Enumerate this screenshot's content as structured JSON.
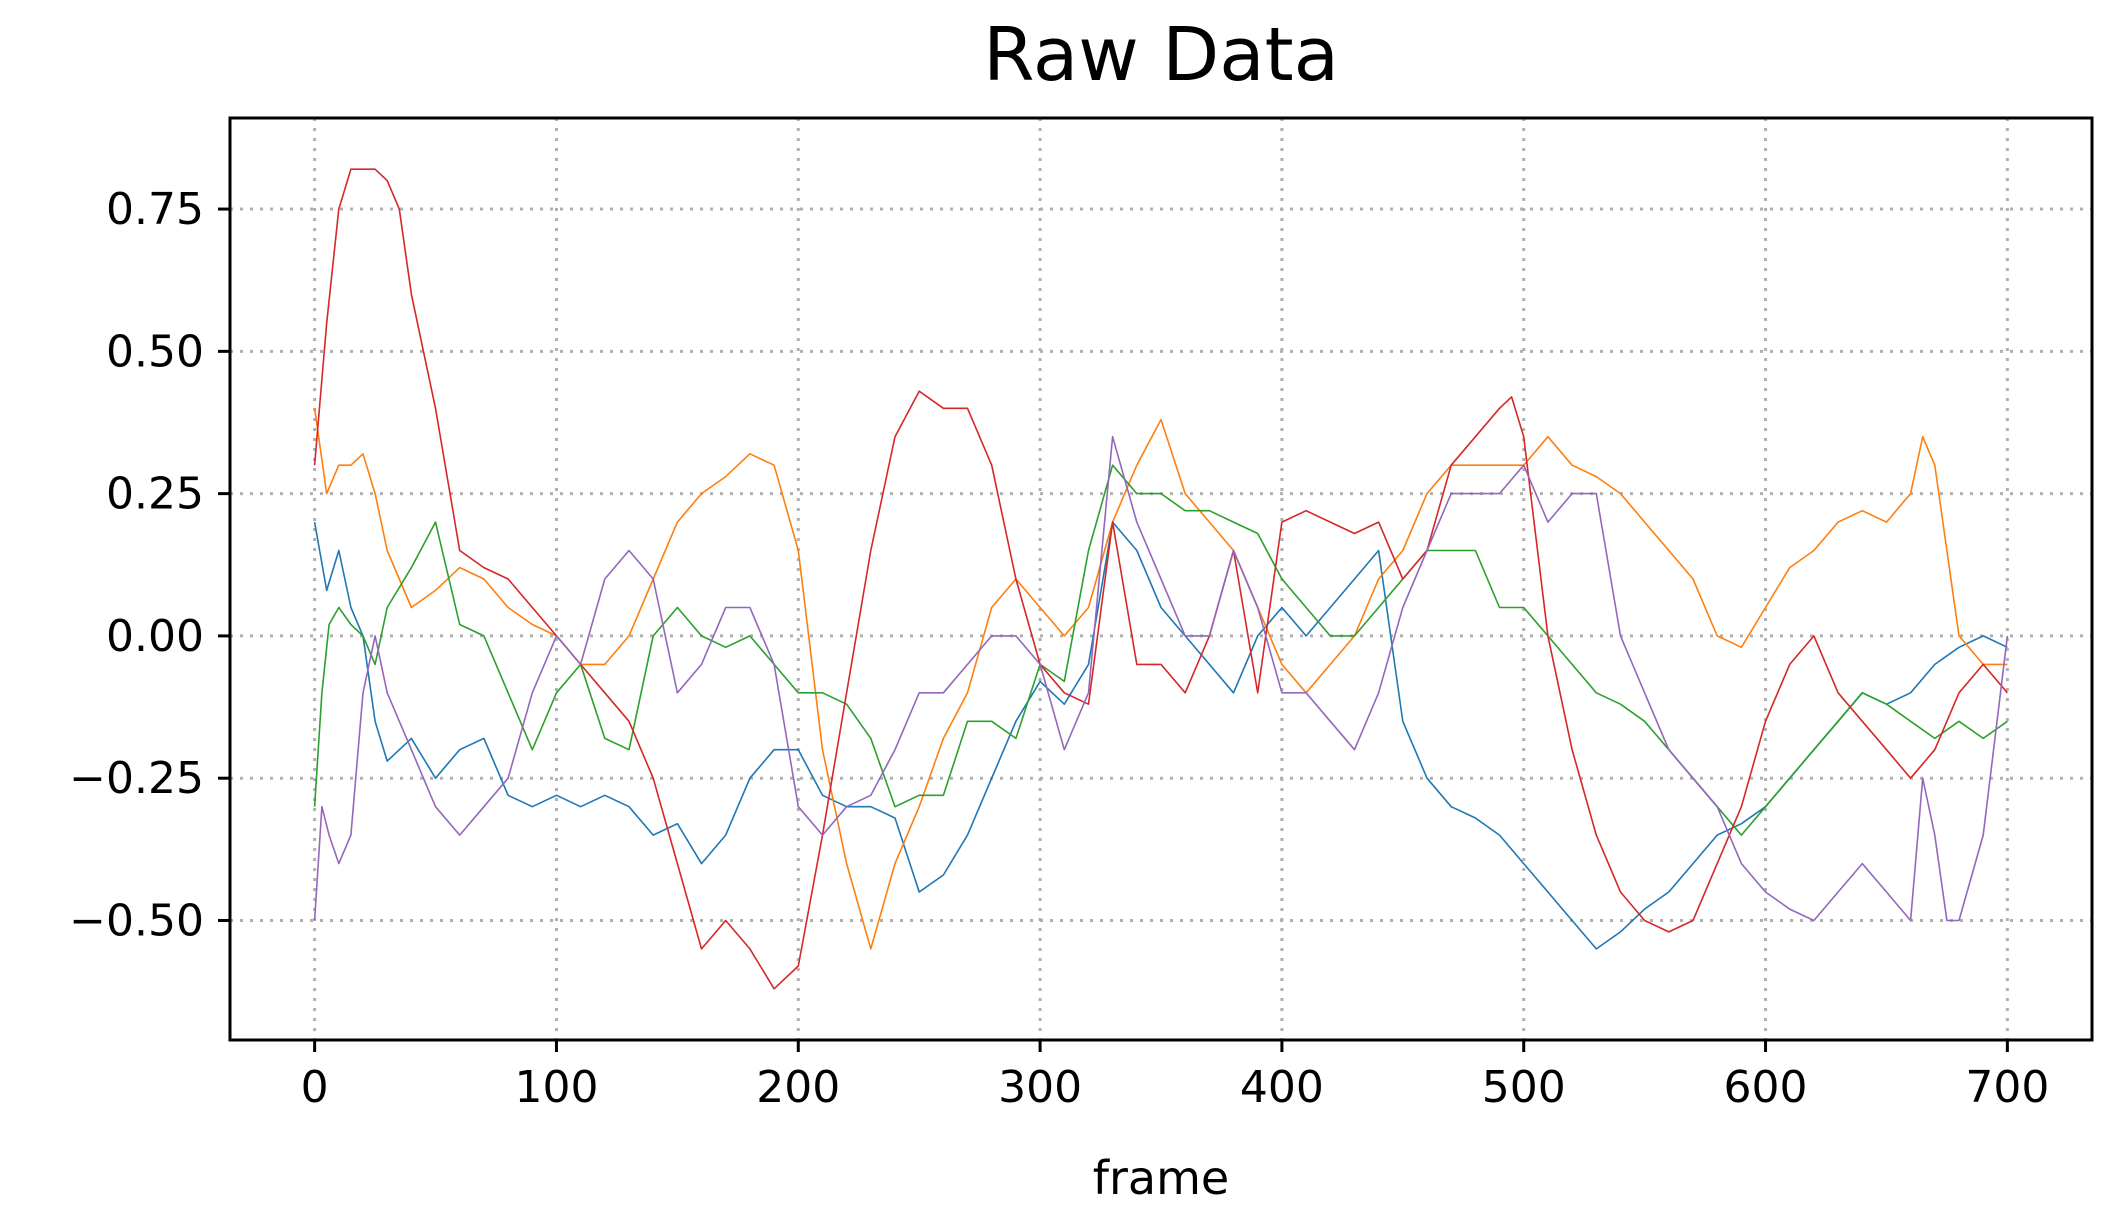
{
  "chart_data": {
    "type": "line",
    "title": "Raw Data",
    "xlabel": "frame",
    "ylabel": "",
    "xlim": [
      -35,
      735
    ],
    "ylim": [
      -0.71,
      0.91
    ],
    "xticks": [
      0,
      100,
      200,
      300,
      400,
      500,
      600,
      700
    ],
    "xtick_labels": [
      "0",
      "100",
      "200",
      "300",
      "400",
      "500",
      "600",
      "700"
    ],
    "yticks": [
      0.75,
      0.5,
      0.25,
      0.0,
      -0.25,
      -0.5
    ],
    "ytick_labels": [
      "0.75",
      "0.50",
      "0.25",
      "0.00",
      "−0.25",
      "−0.50"
    ],
    "grid": true,
    "legend": "none",
    "series": [
      {
        "color": "#1f77b4",
        "x": [
          0,
          5,
          10,
          15,
          20,
          25,
          30,
          40,
          50,
          60,
          70,
          80,
          90,
          100,
          110,
          120,
          130,
          140,
          150,
          160,
          170,
          180,
          190,
          200,
          210,
          220,
          230,
          240,
          250,
          260,
          270,
          280,
          290,
          300,
          310,
          320,
          330,
          340,
          350,
          360,
          370,
          380,
          390,
          400,
          410,
          420,
          430,
          440,
          450,
          460,
          470,
          480,
          490,
          500,
          510,
          520,
          530,
          540,
          550,
          560,
          570,
          580,
          590,
          600,
          610,
          620,
          630,
          640,
          650,
          660,
          670,
          680,
          690,
          700
        ],
        "y": [
          0.2,
          0.08,
          0.15,
          0.05,
          0.0,
          -0.15,
          -0.22,
          -0.18,
          -0.25,
          -0.2,
          -0.18,
          -0.28,
          -0.3,
          -0.28,
          -0.3,
          -0.28,
          -0.3,
          -0.35,
          -0.33,
          -0.4,
          -0.35,
          -0.25,
          -0.2,
          -0.2,
          -0.28,
          -0.3,
          -0.3,
          -0.32,
          -0.45,
          -0.42,
          -0.35,
          -0.25,
          -0.15,
          -0.08,
          -0.12,
          -0.05,
          0.2,
          0.15,
          0.05,
          0.0,
          -0.05,
          -0.1,
          0.0,
          0.05,
          0.0,
          0.05,
          0.1,
          0.15,
          -0.15,
          -0.25,
          -0.3,
          -0.32,
          -0.35,
          -0.4,
          -0.45,
          -0.5,
          -0.55,
          -0.52,
          -0.48,
          -0.45,
          -0.4,
          -0.35,
          -0.33,
          -0.3,
          -0.25,
          -0.2,
          -0.15,
          -0.1,
          -0.12,
          -0.1,
          -0.05,
          -0.02,
          0.0,
          -0.02
        ]
      },
      {
        "color": "#ff7f0e",
        "x": [
          0,
          5,
          10,
          15,
          20,
          25,
          30,
          40,
          50,
          60,
          70,
          80,
          90,
          100,
          110,
          120,
          130,
          140,
          150,
          160,
          170,
          180,
          190,
          200,
          210,
          220,
          230,
          240,
          250,
          260,
          270,
          280,
          290,
          300,
          310,
          320,
          330,
          340,
          350,
          360,
          370,
          380,
          390,
          400,
          410,
          420,
          430,
          440,
          450,
          460,
          470,
          480,
          490,
          500,
          510,
          520,
          530,
          540,
          550,
          560,
          570,
          580,
          590,
          600,
          610,
          620,
          630,
          640,
          650,
          660,
          665,
          670,
          680,
          690,
          700
        ],
        "y": [
          0.4,
          0.25,
          0.3,
          0.3,
          0.32,
          0.25,
          0.15,
          0.05,
          0.08,
          0.12,
          0.1,
          0.05,
          0.02,
          0.0,
          -0.05,
          -0.05,
          0.0,
          0.1,
          0.2,
          0.25,
          0.28,
          0.32,
          0.3,
          0.15,
          -0.2,
          -0.4,
          -0.55,
          -0.4,
          -0.3,
          -0.18,
          -0.1,
          0.05,
          0.1,
          0.05,
          0.0,
          0.05,
          0.2,
          0.3,
          0.38,
          0.25,
          0.2,
          0.15,
          0.05,
          -0.05,
          -0.1,
          -0.05,
          0.0,
          0.1,
          0.15,
          0.25,
          0.3,
          0.3,
          0.3,
          0.3,
          0.35,
          0.3,
          0.28,
          0.25,
          0.2,
          0.15,
          0.1,
          0.0,
          -0.02,
          0.05,
          0.12,
          0.15,
          0.2,
          0.22,
          0.2,
          0.25,
          0.35,
          0.3,
          0.0,
          -0.05,
          -0.05
        ]
      },
      {
        "color": "#2ca02c",
        "x": [
          0,
          3,
          6,
          10,
          15,
          20,
          25,
          30,
          40,
          50,
          60,
          70,
          80,
          90,
          100,
          110,
          120,
          130,
          140,
          150,
          160,
          170,
          180,
          190,
          200,
          210,
          220,
          230,
          240,
          250,
          260,
          270,
          280,
          290,
          300,
          310,
          320,
          330,
          340,
          350,
          360,
          370,
          380,
          390,
          400,
          410,
          420,
          430,
          440,
          450,
          460,
          470,
          480,
          490,
          500,
          510,
          520,
          530,
          540,
          550,
          560,
          570,
          580,
          590,
          600,
          610,
          620,
          630,
          640,
          650,
          660,
          670,
          680,
          690,
          700
        ],
        "y": [
          -0.3,
          -0.1,
          0.02,
          0.05,
          0.02,
          0.0,
          -0.05,
          0.05,
          0.12,
          0.2,
          0.02,
          0.0,
          -0.1,
          -0.2,
          -0.1,
          -0.05,
          -0.18,
          -0.2,
          0.0,
          0.05,
          0.0,
          -0.02,
          0.0,
          -0.05,
          -0.1,
          -0.1,
          -0.12,
          -0.18,
          -0.3,
          -0.28,
          -0.28,
          -0.15,
          -0.15,
          -0.18,
          -0.05,
          -0.08,
          0.15,
          0.3,
          0.25,
          0.25,
          0.22,
          0.22,
          0.2,
          0.18,
          0.1,
          0.05,
          0.0,
          0.0,
          0.05,
          0.1,
          0.15,
          0.15,
          0.15,
          0.05,
          0.05,
          0.0,
          -0.05,
          -0.1,
          -0.12,
          -0.15,
          -0.2,
          -0.25,
          -0.3,
          -0.35,
          -0.3,
          -0.25,
          -0.2,
          -0.15,
          -0.1,
          -0.12,
          -0.15,
          -0.18,
          -0.15,
          -0.18,
          -0.15
        ]
      },
      {
        "color": "#d62728",
        "x": [
          0,
          5,
          10,
          15,
          20,
          25,
          30,
          35,
          40,
          50,
          60,
          70,
          80,
          90,
          100,
          110,
          120,
          130,
          140,
          150,
          160,
          170,
          180,
          190,
          200,
          210,
          220,
          230,
          240,
          250,
          260,
          270,
          280,
          290,
          300,
          310,
          320,
          330,
          340,
          350,
          360,
          370,
          380,
          390,
          400,
          410,
          420,
          430,
          440,
          450,
          460,
          470,
          480,
          490,
          495,
          500,
          510,
          520,
          530,
          540,
          550,
          560,
          570,
          580,
          590,
          600,
          610,
          620,
          630,
          640,
          650,
          660,
          670,
          680,
          690,
          700
        ],
        "y": [
          0.3,
          0.55,
          0.75,
          0.82,
          0.82,
          0.82,
          0.8,
          0.75,
          0.6,
          0.4,
          0.15,
          0.12,
          0.1,
          0.05,
          0.0,
          -0.05,
          -0.1,
          -0.15,
          -0.25,
          -0.4,
          -0.55,
          -0.5,
          -0.55,
          -0.62,
          -0.58,
          -0.35,
          -0.1,
          0.15,
          0.35,
          0.43,
          0.4,
          0.4,
          0.3,
          0.1,
          -0.05,
          -0.1,
          -0.12,
          0.2,
          -0.05,
          -0.05,
          -0.1,
          0.0,
          0.15,
          -0.1,
          0.2,
          0.22,
          0.2,
          0.18,
          0.2,
          0.1,
          0.15,
          0.3,
          0.35,
          0.4,
          0.42,
          0.35,
          0.0,
          -0.2,
          -0.35,
          -0.45,
          -0.5,
          -0.52,
          -0.5,
          -0.4,
          -0.3,
          -0.15,
          -0.05,
          0.0,
          -0.1,
          -0.15,
          -0.2,
          -0.25,
          -0.2,
          -0.1,
          -0.05,
          -0.1
        ]
      },
      {
        "color": "#9467bd",
        "x": [
          0,
          3,
          6,
          10,
          15,
          20,
          25,
          30,
          40,
          50,
          60,
          70,
          80,
          90,
          100,
          110,
          120,
          130,
          140,
          150,
          160,
          170,
          180,
          190,
          200,
          210,
          220,
          230,
          240,
          250,
          260,
          270,
          280,
          290,
          300,
          310,
          320,
          330,
          340,
          350,
          360,
          370,
          380,
          390,
          400,
          410,
          420,
          430,
          440,
          450,
          460,
          470,
          480,
          490,
          500,
          510,
          520,
          530,
          540,
          550,
          560,
          570,
          580,
          590,
          600,
          610,
          620,
          630,
          640,
          650,
          660,
          665,
          670,
          675,
          680,
          690,
          700
        ],
        "y": [
          -0.5,
          -0.3,
          -0.35,
          -0.4,
          -0.35,
          -0.1,
          0.0,
          -0.1,
          -0.2,
          -0.3,
          -0.35,
          -0.3,
          -0.25,
          -0.1,
          0.0,
          -0.05,
          0.1,
          0.15,
          0.1,
          -0.1,
          -0.05,
          0.05,
          0.05,
          -0.05,
          -0.3,
          -0.35,
          -0.3,
          -0.28,
          -0.2,
          -0.1,
          -0.1,
          -0.05,
          0.0,
          0.0,
          -0.05,
          -0.2,
          -0.1,
          0.35,
          0.2,
          0.1,
          0.0,
          0.0,
          0.15,
          0.05,
          -0.1,
          -0.1,
          -0.15,
          -0.2,
          -0.1,
          0.05,
          0.15,
          0.25,
          0.25,
          0.25,
          0.3,
          0.2,
          0.25,
          0.25,
          0.0,
          -0.1,
          -0.2,
          -0.25,
          -0.3,
          -0.4,
          -0.45,
          -0.48,
          -0.5,
          -0.45,
          -0.4,
          -0.45,
          -0.5,
          -0.25,
          -0.35,
          -0.5,
          -0.5,
          -0.35,
          0.0
        ]
      }
    ]
  }
}
